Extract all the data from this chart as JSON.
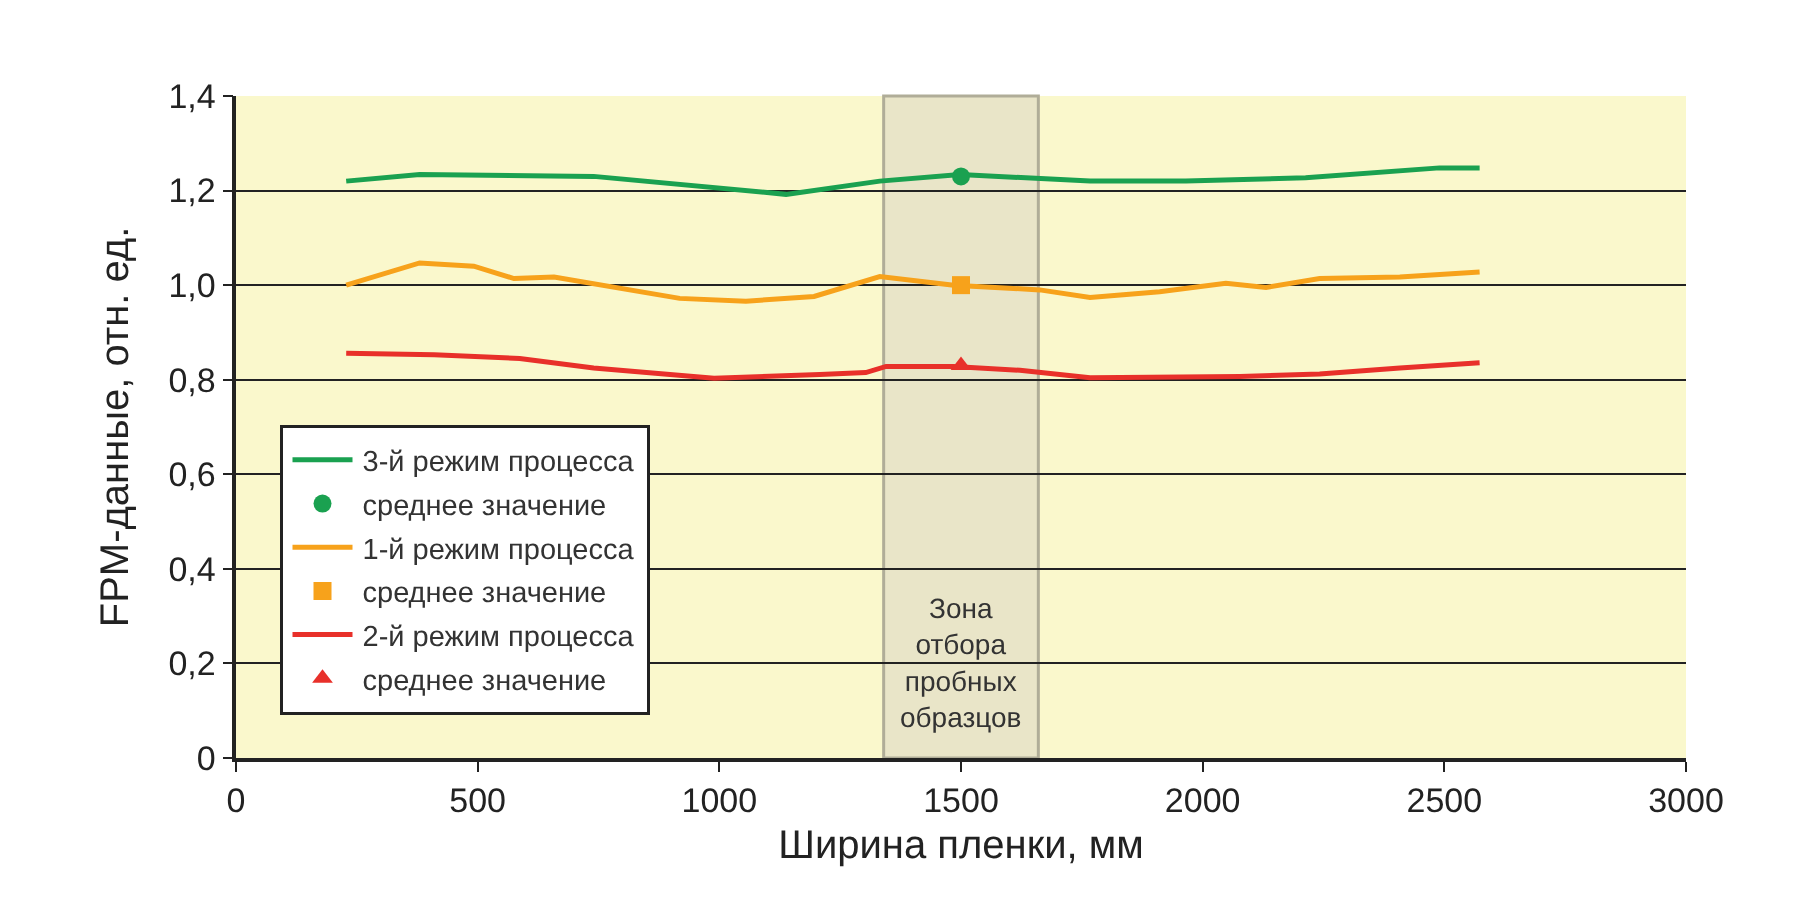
{
  "chart_data": {
    "type": "line",
    "xlabel": "Ширина пленки, мм",
    "ylabel": "FPM-данные, отн. ед.",
    "xlim": [
      0,
      3000
    ],
    "xticks": [
      0,
      500,
      1000,
      1500,
      2000,
      2500,
      3000
    ],
    "ylim": [
      0,
      1.4
    ],
    "yticks": [
      {
        "value": 0,
        "label": "0"
      },
      {
        "value": 0.2,
        "label": "0,2"
      },
      {
        "value": 0.4,
        "label": "0,4"
      },
      {
        "value": 0.6,
        "label": "0,6"
      },
      {
        "value": 0.8,
        "label": "0,8"
      },
      {
        "value": 1.0,
        "label": "1,0"
      },
      {
        "value": 1.2,
        "label": "1,2"
      },
      {
        "value": 1.4,
        "label": "1,4"
      }
    ],
    "grid": "y",
    "legend": "bottom left",
    "line_style": "solid",
    "bands": [
      {
        "axis": "x",
        "from": 1340,
        "to": 1660,
        "label": "Зона\nотбора\nпробных\nобразцов",
        "color": "#e9e5c8"
      }
    ],
    "series": [
      {
        "name": "3-й режим процесса",
        "color": "#1aa150",
        "marker": "none",
        "x": [
          228,
          380,
          740,
          1138,
          1332,
          1498,
          1767,
          1965,
          2213,
          2490,
          2573
        ],
        "values": [
          1.22,
          1.234,
          1.23,
          1.192,
          1.22,
          1.234,
          1.22,
          1.22,
          1.227,
          1.248,
          1.248
        ]
      },
      {
        "name": "среднее значение",
        "type": "scatter",
        "color": "#1aa150",
        "marker": "circle",
        "x": [
          1500
        ],
        "values": [
          1.23
        ]
      },
      {
        "name": "1-й режим процесса",
        "color": "#f7a21b",
        "marker": "none",
        "x": [
          228,
          380,
          492,
          575,
          658,
          918,
          1055,
          1196,
          1332,
          1485,
          1663,
          1767,
          1911,
          2048,
          2131,
          2242,
          2408,
          2573
        ],
        "values": [
          1.0,
          1.047,
          1.04,
          1.014,
          1.017,
          0.972,
          0.966,
          0.976,
          1.018,
          1.0,
          0.99,
          0.974,
          0.986,
          1.004,
          0.995,
          1.014,
          1.017,
          1.028
        ]
      },
      {
        "name": "среднее значение",
        "type": "scatter",
        "color": "#f7a21b",
        "marker": "square",
        "x": [
          1500
        ],
        "values": [
          1.0
        ]
      },
      {
        "name": "2-й режим процесса",
        "color": "#e8302a",
        "marker": "none",
        "x": [
          228,
          410,
          587,
          740,
          989,
          1208,
          1303,
          1345,
          1485,
          1622,
          1767,
          2077,
          2242,
          2408,
          2573
        ],
        "values": [
          0.856,
          0.853,
          0.845,
          0.825,
          0.803,
          0.811,
          0.815,
          0.828,
          0.828,
          0.82,
          0.804,
          0.807,
          0.812,
          0.825,
          0.836
        ]
      },
      {
        "name": "среднее значение",
        "type": "scatter",
        "color": "#e8302a",
        "marker": "triangle",
        "x": [
          1500
        ],
        "values": [
          0.83
        ]
      }
    ]
  }
}
